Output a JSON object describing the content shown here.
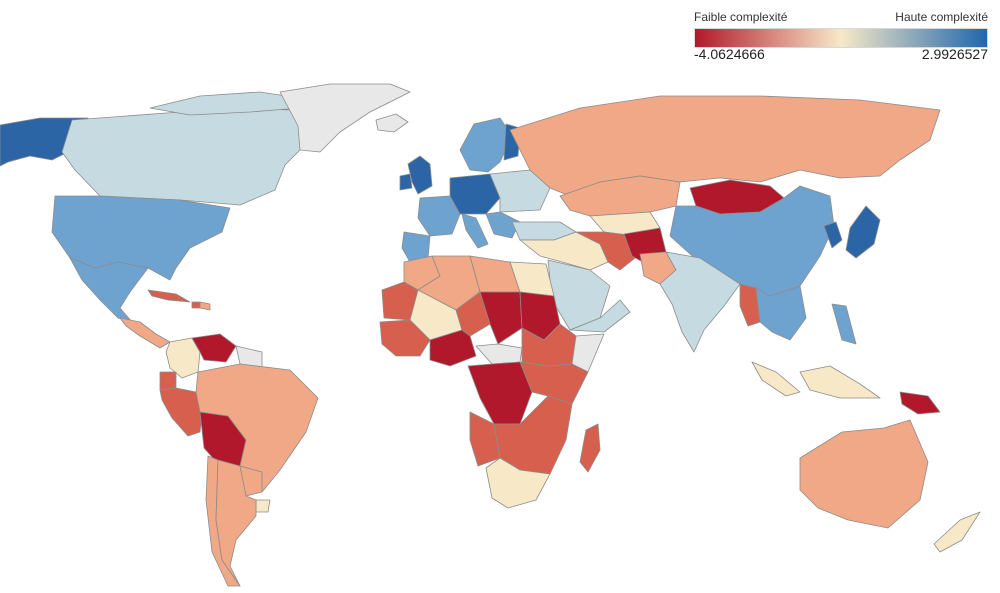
{
  "legend": {
    "low_label": "Faible complexité",
    "high_label": "Haute complexité",
    "min_value": "-4.0624666",
    "max_value": "2.9926527",
    "color_low": "#b2182b",
    "color_mid": "#f7e9c8",
    "color_high": "#2166ac"
  },
  "colors": {
    "very_low": "#b2182b",
    "low": "#d6604d",
    "mid_low": "#f0a886",
    "neutral": "#f7e9c8",
    "mid_high": "#c6dbe1",
    "high": "#6fa3cf",
    "very_high": "#2b65a5",
    "no_data": "#e8e8e8"
  }
}
